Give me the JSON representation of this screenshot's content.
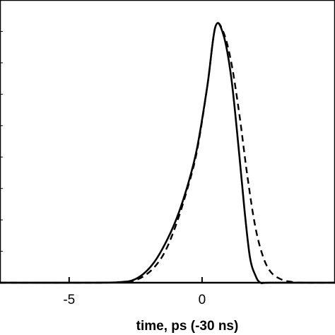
{
  "chart_data": {
    "type": "line",
    "title": "",
    "xlabel": "time, ps (-30 ns)",
    "ylabel": "",
    "xlim": [
      -7.6,
      5.0
    ],
    "ylim": [
      0,
      1.0
    ],
    "x_ticks": [
      -5,
      0
    ],
    "x_tick_labels": [
      "-5",
      "0"
    ],
    "grid": false,
    "legend": "none",
    "series": [
      {
        "style": "solid",
        "color": "#000000",
        "x": [
          -7.6,
          -4.0,
          -3.0,
          -2.6,
          -2.2,
          -1.8,
          -1.4,
          -1.0,
          -0.6,
          -0.2,
          0.2,
          0.5,
          0.8,
          1.1,
          1.4,
          1.6,
          1.8,
          2.0,
          2.2,
          2.6,
          5.0
        ],
        "y": [
          0.0,
          0.0,
          0.003,
          0.01,
          0.035,
          0.08,
          0.15,
          0.24,
          0.36,
          0.52,
          0.77,
          1.0,
          0.97,
          0.8,
          0.5,
          0.28,
          0.1,
          0.03,
          0.0,
          0.0,
          0.0
        ]
      },
      {
        "style": "dashed",
        "color": "#000000",
        "x": [
          -7.6,
          -4.0,
          -3.0,
          -2.6,
          -2.2,
          -1.8,
          -1.4,
          -1.0,
          -0.6,
          -0.2,
          0.2,
          0.5,
          0.8,
          1.1,
          1.4,
          1.7,
          2.0,
          2.3,
          2.6,
          3.0,
          3.4,
          3.8,
          5.0
        ],
        "y": [
          0.0,
          0.0,
          0.002,
          0.007,
          0.025,
          0.06,
          0.12,
          0.22,
          0.35,
          0.51,
          0.77,
          1.0,
          0.98,
          0.86,
          0.66,
          0.42,
          0.22,
          0.1,
          0.04,
          0.012,
          0.003,
          0.0,
          0.0
        ]
      }
    ]
  }
}
